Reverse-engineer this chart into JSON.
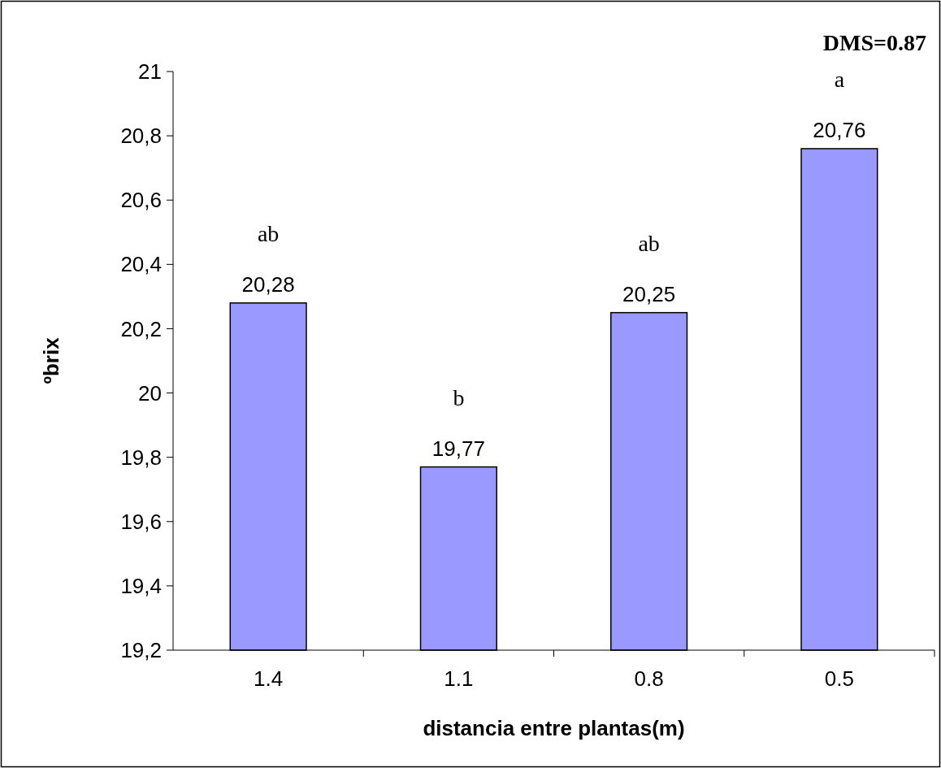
{
  "chart_data": {
    "type": "bar",
    "xlabel": "distancia entre plantas(m)",
    "ylabel": "ºbrix",
    "categories": [
      "1.4",
      "1.1",
      "0.8",
      "0.5"
    ],
    "values": [
      20.28,
      19.77,
      20.25,
      20.76
    ],
    "value_labels": [
      "20,28",
      "19,77",
      "20,25",
      "20,76"
    ],
    "color": "#9999ff",
    "ylim": [
      19.2,
      21
    ],
    "yticks": [
      {
        "value": 19.2,
        "label": "19,2"
      },
      {
        "value": 19.4,
        "label": "19,4"
      },
      {
        "value": 19.6,
        "label": "19,6"
      },
      {
        "value": 19.8,
        "label": "19,8"
      },
      {
        "value": 20,
        "label": "20"
      },
      {
        "value": 20.2,
        "label": "20,2"
      },
      {
        "value": 20.4,
        "label": "20,4"
      },
      {
        "value": 20.6,
        "label": "20,6"
      },
      {
        "value": 20.8,
        "label": "20,8"
      },
      {
        "value": 21,
        "label": "21"
      }
    ],
    "annotations": [
      "DMS=0.87",
      "ab",
      "b",
      "ab",
      "a"
    ],
    "grid": false
  }
}
